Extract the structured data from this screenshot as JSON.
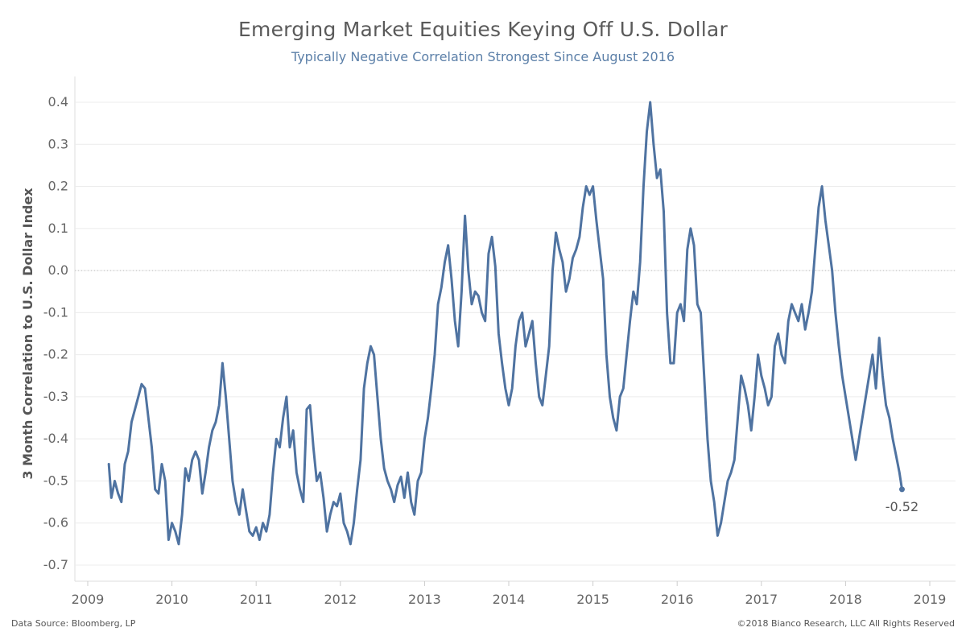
{
  "colors": {
    "line": "#4f73a1",
    "title": "#5a5a5a",
    "subtitle": "#5b7fa8",
    "gridline": "#ececec",
    "zeroline": "#bbbbbb",
    "axis_text": "#666666"
  },
  "footer": {
    "source": "Data Source: Bloomberg, LP",
    "copyright": "©2018 Bianco Research, LLC All Rights Reserved"
  },
  "chart_data": {
    "type": "line",
    "title": "Emerging Market Equities Keying Off U.S. Dollar",
    "subtitle": "Typically Negative Correlation Strongest Since August 2016",
    "xlabel": "",
    "ylabel": "3 Month Correlation to U.S. Dollar Index",
    "xlim": [
      2009.0,
      2019.0
    ],
    "ylim": [
      -0.7,
      0.4
    ],
    "x_ticks": [
      2009,
      2010,
      2011,
      2012,
      2013,
      2014,
      2015,
      2016,
      2017,
      2018,
      2019
    ],
    "y_ticks": [
      0.4,
      0.3,
      0.2,
      0.1,
      0.0,
      -0.1,
      -0.2,
      -0.3,
      -0.4,
      -0.5,
      -0.6,
      -0.7
    ],
    "y_tick_labels": [
      "0.4",
      "0.3",
      "0.2",
      "0.1",
      "0.0",
      "-0.1",
      "-0.2",
      "-0.3",
      "-0.4",
      "-0.5",
      "-0.6",
      "-0.7"
    ],
    "grid": true,
    "reference_line": 0.0,
    "end_label": "-0.52",
    "series": [
      {
        "points": [
          [
            2009.25,
            -0.46
          ],
          [
            2009.28,
            -0.54
          ],
          [
            2009.32,
            -0.5
          ],
          [
            2009.36,
            -0.53
          ],
          [
            2009.4,
            -0.55
          ],
          [
            2009.44,
            -0.46
          ],
          [
            2009.48,
            -0.43
          ],
          [
            2009.52,
            -0.36
          ],
          [
            2009.56,
            -0.33
          ],
          [
            2009.6,
            -0.3
          ],
          [
            2009.64,
            -0.27
          ],
          [
            2009.68,
            -0.28
          ],
          [
            2009.72,
            -0.35
          ],
          [
            2009.76,
            -0.42
          ],
          [
            2009.8,
            -0.52
          ],
          [
            2009.84,
            -0.53
          ],
          [
            2009.88,
            -0.46
          ],
          [
            2009.92,
            -0.5
          ],
          [
            2009.96,
            -0.64
          ],
          [
            2010.0,
            -0.6
          ],
          [
            2010.04,
            -0.62
          ],
          [
            2010.08,
            -0.65
          ],
          [
            2010.12,
            -0.58
          ],
          [
            2010.16,
            -0.47
          ],
          [
            2010.2,
            -0.5
          ],
          [
            2010.24,
            -0.45
          ],
          [
            2010.28,
            -0.43
          ],
          [
            2010.32,
            -0.45
          ],
          [
            2010.36,
            -0.53
          ],
          [
            2010.4,
            -0.48
          ],
          [
            2010.44,
            -0.42
          ],
          [
            2010.48,
            -0.38
          ],
          [
            2010.52,
            -0.36
          ],
          [
            2010.56,
            -0.32
          ],
          [
            2010.6,
            -0.22
          ],
          [
            2010.64,
            -0.3
          ],
          [
            2010.68,
            -0.4
          ],
          [
            2010.72,
            -0.5
          ],
          [
            2010.76,
            -0.55
          ],
          [
            2010.8,
            -0.58
          ],
          [
            2010.84,
            -0.52
          ],
          [
            2010.88,
            -0.57
          ],
          [
            2010.92,
            -0.62
          ],
          [
            2010.96,
            -0.63
          ],
          [
            2011.0,
            -0.61
          ],
          [
            2011.04,
            -0.64
          ],
          [
            2011.08,
            -0.6
          ],
          [
            2011.12,
            -0.62
          ],
          [
            2011.16,
            -0.58
          ],
          [
            2011.2,
            -0.48
          ],
          [
            2011.24,
            -0.4
          ],
          [
            2011.28,
            -0.42
          ],
          [
            2011.32,
            -0.35
          ],
          [
            2011.36,
            -0.3
          ],
          [
            2011.4,
            -0.42
          ],
          [
            2011.44,
            -0.38
          ],
          [
            2011.48,
            -0.48
          ],
          [
            2011.52,
            -0.52
          ],
          [
            2011.56,
            -0.55
          ],
          [
            2011.6,
            -0.33
          ],
          [
            2011.64,
            -0.32
          ],
          [
            2011.68,
            -0.42
          ],
          [
            2011.72,
            -0.5
          ],
          [
            2011.76,
            -0.48
          ],
          [
            2011.8,
            -0.54
          ],
          [
            2011.84,
            -0.62
          ],
          [
            2011.88,
            -0.58
          ],
          [
            2011.92,
            -0.55
          ],
          [
            2011.96,
            -0.56
          ],
          [
            2012.0,
            -0.53
          ],
          [
            2012.04,
            -0.6
          ],
          [
            2012.08,
            -0.62
          ],
          [
            2012.12,
            -0.65
          ],
          [
            2012.16,
            -0.6
          ],
          [
            2012.2,
            -0.52
          ],
          [
            2012.24,
            -0.45
          ],
          [
            2012.28,
            -0.28
          ],
          [
            2012.32,
            -0.22
          ],
          [
            2012.36,
            -0.18
          ],
          [
            2012.4,
            -0.2
          ],
          [
            2012.44,
            -0.3
          ],
          [
            2012.48,
            -0.4
          ],
          [
            2012.52,
            -0.47
          ],
          [
            2012.56,
            -0.5
          ],
          [
            2012.6,
            -0.52
          ],
          [
            2012.64,
            -0.55
          ],
          [
            2012.68,
            -0.51
          ],
          [
            2012.72,
            -0.49
          ],
          [
            2012.76,
            -0.54
          ],
          [
            2012.8,
            -0.48
          ],
          [
            2012.84,
            -0.55
          ],
          [
            2012.88,
            -0.58
          ],
          [
            2012.92,
            -0.5
          ],
          [
            2012.96,
            -0.48
          ],
          [
            2013.0,
            -0.4
          ],
          [
            2013.04,
            -0.35
          ],
          [
            2013.08,
            -0.28
          ],
          [
            2013.12,
            -0.2
          ],
          [
            2013.16,
            -0.08
          ],
          [
            2013.2,
            -0.04
          ],
          [
            2013.24,
            0.02
          ],
          [
            2013.28,
            0.06
          ],
          [
            2013.32,
            -0.02
          ],
          [
            2013.36,
            -0.12
          ],
          [
            2013.4,
            -0.18
          ],
          [
            2013.44,
            -0.05
          ],
          [
            2013.48,
            0.13
          ],
          [
            2013.52,
            0.0
          ],
          [
            2013.56,
            -0.08
          ],
          [
            2013.6,
            -0.05
          ],
          [
            2013.64,
            -0.06
          ],
          [
            2013.68,
            -0.1
          ],
          [
            2013.72,
            -0.12
          ],
          [
            2013.76,
            0.04
          ],
          [
            2013.8,
            0.08
          ],
          [
            2013.84,
            0.01
          ],
          [
            2013.88,
            -0.15
          ],
          [
            2013.92,
            -0.22
          ],
          [
            2013.96,
            -0.28
          ],
          [
            2014.0,
            -0.32
          ],
          [
            2014.04,
            -0.28
          ],
          [
            2014.08,
            -0.18
          ],
          [
            2014.12,
            -0.12
          ],
          [
            2014.16,
            -0.1
          ],
          [
            2014.2,
            -0.18
          ],
          [
            2014.24,
            -0.15
          ],
          [
            2014.28,
            -0.12
          ],
          [
            2014.32,
            -0.22
          ],
          [
            2014.36,
            -0.3
          ],
          [
            2014.4,
            -0.32
          ],
          [
            2014.44,
            -0.25
          ],
          [
            2014.48,
            -0.18
          ],
          [
            2014.52,
            0.0
          ],
          [
            2014.56,
            0.09
          ],
          [
            2014.6,
            0.05
          ],
          [
            2014.64,
            0.02
          ],
          [
            2014.68,
            -0.05
          ],
          [
            2014.72,
            -0.02
          ],
          [
            2014.76,
            0.03
          ],
          [
            2014.8,
            0.05
          ],
          [
            2014.84,
            0.08
          ],
          [
            2014.88,
            0.15
          ],
          [
            2014.92,
            0.2
          ],
          [
            2014.96,
            0.18
          ],
          [
            2015.0,
            0.2
          ],
          [
            2015.04,
            0.12
          ],
          [
            2015.08,
            0.05
          ],
          [
            2015.12,
            -0.02
          ],
          [
            2015.16,
            -0.2
          ],
          [
            2015.2,
            -0.3
          ],
          [
            2015.24,
            -0.35
          ],
          [
            2015.28,
            -0.38
          ],
          [
            2015.32,
            -0.3
          ],
          [
            2015.36,
            -0.28
          ],
          [
            2015.4,
            -0.2
          ],
          [
            2015.44,
            -0.12
          ],
          [
            2015.48,
            -0.05
          ],
          [
            2015.52,
            -0.08
          ],
          [
            2015.56,
            0.02
          ],
          [
            2015.6,
            0.2
          ],
          [
            2015.64,
            0.33
          ],
          [
            2015.68,
            0.4
          ],
          [
            2015.72,
            0.3
          ],
          [
            2015.76,
            0.22
          ],
          [
            2015.8,
            0.24
          ],
          [
            2015.84,
            0.14
          ],
          [
            2015.88,
            -0.1
          ],
          [
            2015.92,
            -0.22
          ],
          [
            2015.96,
            -0.22
          ],
          [
            2016.0,
            -0.1
          ],
          [
            2016.04,
            -0.08
          ],
          [
            2016.08,
            -0.12
          ],
          [
            2016.12,
            0.05
          ],
          [
            2016.16,
            0.1
          ],
          [
            2016.2,
            0.06
          ],
          [
            2016.24,
            -0.08
          ],
          [
            2016.28,
            -0.1
          ],
          [
            2016.32,
            -0.25
          ],
          [
            2016.36,
            -0.4
          ],
          [
            2016.4,
            -0.5
          ],
          [
            2016.44,
            -0.55
          ],
          [
            2016.48,
            -0.63
          ],
          [
            2016.52,
            -0.6
          ],
          [
            2016.56,
            -0.55
          ],
          [
            2016.6,
            -0.5
          ],
          [
            2016.64,
            -0.48
          ],
          [
            2016.68,
            -0.45
          ],
          [
            2016.72,
            -0.35
          ],
          [
            2016.76,
            -0.25
          ],
          [
            2016.8,
            -0.28
          ],
          [
            2016.84,
            -0.32
          ],
          [
            2016.88,
            -0.38
          ],
          [
            2016.92,
            -0.3
          ],
          [
            2016.96,
            -0.2
          ],
          [
            2017.0,
            -0.25
          ],
          [
            2017.04,
            -0.28
          ],
          [
            2017.08,
            -0.32
          ],
          [
            2017.12,
            -0.3
          ],
          [
            2017.16,
            -0.18
          ],
          [
            2017.2,
            -0.15
          ],
          [
            2017.24,
            -0.2
          ],
          [
            2017.28,
            -0.22
          ],
          [
            2017.32,
            -0.12
          ],
          [
            2017.36,
            -0.08
          ],
          [
            2017.4,
            -0.1
          ],
          [
            2017.44,
            -0.12
          ],
          [
            2017.48,
            -0.08
          ],
          [
            2017.52,
            -0.14
          ],
          [
            2017.56,
            -0.1
          ],
          [
            2017.6,
            -0.05
          ],
          [
            2017.64,
            0.05
          ],
          [
            2017.68,
            0.15
          ],
          [
            2017.72,
            0.2
          ],
          [
            2017.76,
            0.12
          ],
          [
            2017.8,
            0.06
          ],
          [
            2017.84,
            0.0
          ],
          [
            2017.88,
            -0.1
          ],
          [
            2017.92,
            -0.18
          ],
          [
            2017.96,
            -0.25
          ],
          [
            2018.0,
            -0.3
          ],
          [
            2018.04,
            -0.35
          ],
          [
            2018.08,
            -0.4
          ],
          [
            2018.12,
            -0.45
          ],
          [
            2018.16,
            -0.4
          ],
          [
            2018.2,
            -0.35
          ],
          [
            2018.24,
            -0.3
          ],
          [
            2018.28,
            -0.25
          ],
          [
            2018.32,
            -0.2
          ],
          [
            2018.36,
            -0.28
          ],
          [
            2018.4,
            -0.16
          ],
          [
            2018.44,
            -0.25
          ],
          [
            2018.48,
            -0.32
          ],
          [
            2018.52,
            -0.35
          ],
          [
            2018.56,
            -0.4
          ],
          [
            2018.6,
            -0.44
          ],
          [
            2018.64,
            -0.48
          ],
          [
            2018.67,
            -0.52
          ]
        ]
      }
    ]
  }
}
